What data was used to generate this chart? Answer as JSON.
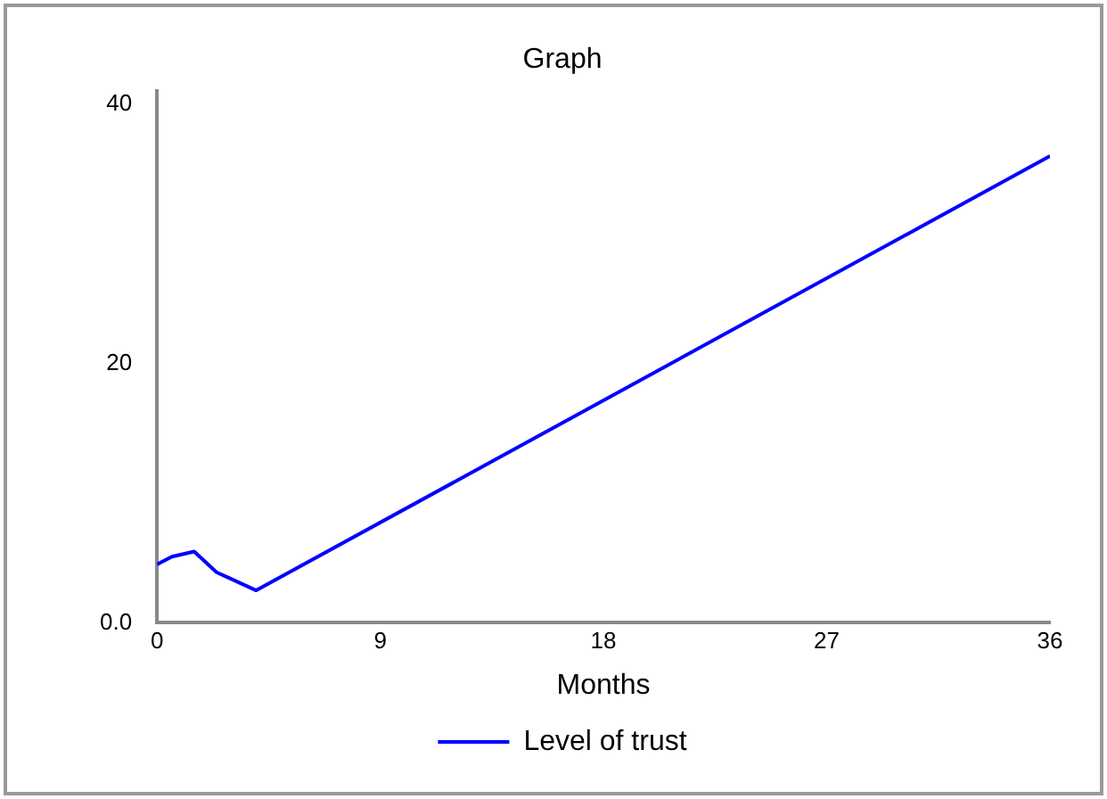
{
  "chart_data": {
    "type": "line",
    "title": "Graph",
    "xlabel": "Months",
    "x": [
      0,
      0.6,
      1.5,
      2.4,
      4,
      36
    ],
    "series": [
      {
        "name": "Level of trust",
        "color": "#0000ff",
        "values": [
          4.5,
          5.1,
          5.5,
          3.9,
          2.5,
          36
        ]
      }
    ],
    "xlim": [
      0,
      36
    ],
    "xticks": [
      0,
      9,
      18,
      27,
      36
    ],
    "ylim": [
      0,
      41
    ],
    "yticks": [
      {
        "value": 0,
        "label": "0.0"
      },
      20,
      40
    ],
    "grid": false,
    "legend": "bottom",
    "marker": "none",
    "line_style": "solid"
  }
}
